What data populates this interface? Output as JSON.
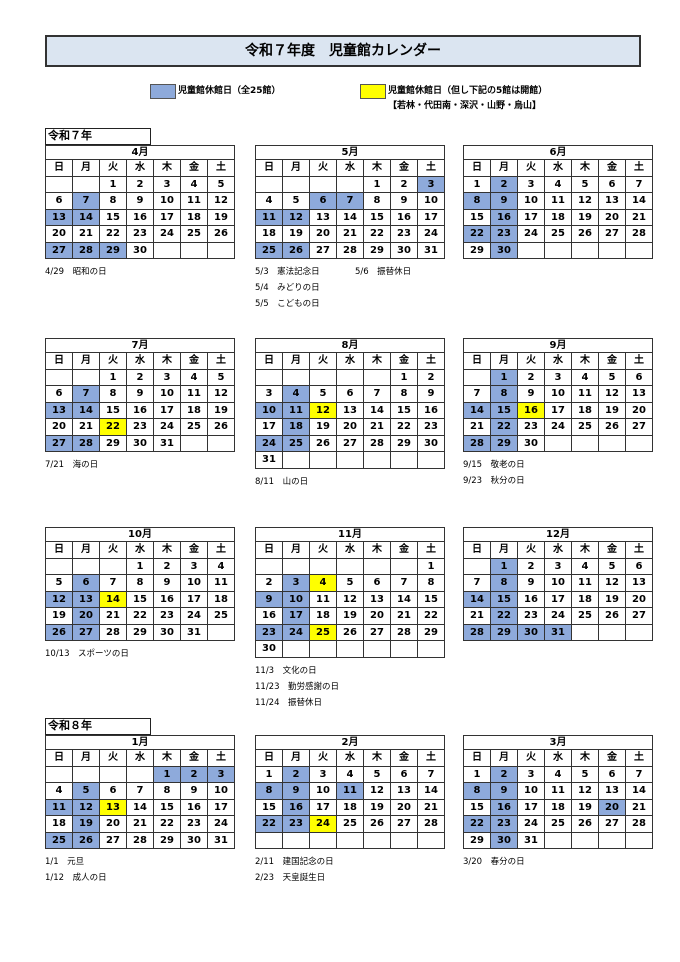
{
  "title": "令和７年度　児童館カレンダー",
  "legend": [
    {
      "label": "児童館休館日（全25館）",
      "color": "#8eaadb"
    },
    {
      "label": "児童館休館日（但し下記の5館は開館）",
      "color": "#ffff00"
    }
  ],
  "legend_note": "【若林・代田南・深沢・山野・烏山】",
  "weekdays": [
    "日",
    "月",
    "火",
    "水",
    "木",
    "金",
    "土"
  ],
  "years": [
    {
      "label": "令和７年",
      "months": [
        {
          "title": "4月",
          "rows": [
            [
              null,
              null,
              1,
              2,
              3,
              4,
              5
            ],
            [
              6,
              7,
              8,
              9,
              10,
              11,
              12
            ],
            [
              13,
              14,
              15,
              16,
              17,
              18,
              19
            ],
            [
              20,
              21,
              22,
              23,
              24,
              25,
              26
            ],
            [
              27,
              28,
              29,
              30,
              null,
              null,
              null
            ]
          ],
          "closed_all": [
            7,
            13,
            14,
            27,
            28,
            29
          ],
          "closed_partial": [],
          "holidays": [
            [
              "4/29　昭和の日"
            ]
          ]
        },
        {
          "title": "5月",
          "rows": [
            [
              null,
              null,
              null,
              null,
              1,
              2,
              3
            ],
            [
              4,
              5,
              6,
              7,
              8,
              9,
              10
            ],
            [
              11,
              12,
              13,
              14,
              15,
              16,
              17
            ],
            [
              18,
              19,
              20,
              21,
              22,
              23,
              24
            ],
            [
              25,
              26,
              27,
              28,
              29,
              30,
              31
            ]
          ],
          "closed_all": [
            3,
            6,
            7,
            11,
            12,
            25,
            26
          ],
          "closed_partial": [],
          "holidays": [
            [
              "5/3　憲法記念日",
              "5/6　振替休日"
            ],
            [
              "5/4　みどりの日"
            ],
            [
              "5/5　こどもの日"
            ]
          ]
        },
        {
          "title": "6月",
          "rows": [
            [
              1,
              2,
              3,
              4,
              5,
              6,
              7
            ],
            [
              8,
              9,
              10,
              11,
              12,
              13,
              14
            ],
            [
              15,
              16,
              17,
              18,
              19,
              20,
              21
            ],
            [
              22,
              23,
              24,
              25,
              26,
              27,
              28
            ],
            [
              29,
              30,
              null,
              null,
              null,
              null,
              null
            ]
          ],
          "closed_all": [
            2,
            8,
            9,
            16,
            22,
            23,
            30
          ],
          "closed_partial": [],
          "holidays": []
        },
        {
          "title": "7月",
          "rows": [
            [
              null,
              null,
              1,
              2,
              3,
              4,
              5
            ],
            [
              6,
              7,
              8,
              9,
              10,
              11,
              12
            ],
            [
              13,
              14,
              15,
              16,
              17,
              18,
              19
            ],
            [
              20,
              21,
              22,
              23,
              24,
              25,
              26
            ],
            [
              27,
              28,
              29,
              30,
              31,
              null,
              null
            ]
          ],
          "closed_all": [
            7,
            13,
            14,
            27,
            28
          ],
          "closed_partial": [
            22
          ],
          "holidays": [
            [
              "7/21　海の日"
            ]
          ]
        },
        {
          "title": "8月",
          "rows": [
            [
              null,
              null,
              null,
              null,
              null,
              1,
              2
            ],
            [
              3,
              4,
              5,
              6,
              7,
              8,
              9
            ],
            [
              10,
              11,
              12,
              13,
              14,
              15,
              16
            ],
            [
              17,
              18,
              19,
              20,
              21,
              22,
              23
            ],
            [
              24,
              25,
              26,
              27,
              28,
              29,
              30
            ],
            [
              31,
              null,
              null,
              null,
              null,
              null,
              null
            ]
          ],
          "closed_all": [
            4,
            10,
            11,
            18,
            24,
            25
          ],
          "closed_partial": [
            12
          ],
          "holidays": [
            [
              "8/11　山の日"
            ]
          ]
        },
        {
          "title": "9月",
          "rows": [
            [
              null,
              1,
              2,
              3,
              4,
              5,
              6
            ],
            [
              7,
              8,
              9,
              10,
              11,
              12,
              13
            ],
            [
              14,
              15,
              16,
              17,
              18,
              19,
              20
            ],
            [
              21,
              22,
              23,
              24,
              25,
              26,
              27
            ],
            [
              28,
              29,
              30,
              null,
              null,
              null,
              null
            ]
          ],
          "closed_all": [
            1,
            8,
            14,
            15,
            22,
            28,
            29
          ],
          "closed_partial": [
            16
          ],
          "holidays": [
            [
              "9/15　敬老の日"
            ],
            [
              "9/23　秋分の日"
            ]
          ]
        },
        {
          "title": "10月",
          "rows": [
            [
              null,
              null,
              null,
              1,
              2,
              3,
              4
            ],
            [
              5,
              6,
              7,
              8,
              9,
              10,
              11
            ],
            [
              12,
              13,
              14,
              15,
              16,
              17,
              18
            ],
            [
              19,
              20,
              21,
              22,
              23,
              24,
              25
            ],
            [
              26,
              27,
              28,
              29,
              30,
              31,
              null
            ]
          ],
          "closed_all": [
            6,
            12,
            13,
            20,
            26,
            27
          ],
          "closed_partial": [
            14
          ],
          "holidays": [
            [
              "10/13　スポーツの日"
            ]
          ]
        },
        {
          "title": "11月",
          "rows": [
            [
              null,
              null,
              null,
              null,
              null,
              null,
              1
            ],
            [
              2,
              3,
              4,
              5,
              6,
              7,
              8
            ],
            [
              9,
              10,
              11,
              12,
              13,
              14,
              15
            ],
            [
              16,
              17,
              18,
              19,
              20,
              21,
              22
            ],
            [
              23,
              24,
              25,
              26,
              27,
              28,
              29
            ],
            [
              30,
              null,
              null,
              null,
              null,
              null,
              null
            ]
          ],
          "closed_all": [
            3,
            9,
            10,
            17,
            23,
            24
          ],
          "closed_partial": [
            4,
            25
          ],
          "holidays": [
            [
              "11/3　文化の日"
            ],
            [
              "11/23　勤労感謝の日"
            ],
            [
              "11/24　振替休日"
            ]
          ]
        },
        {
          "title": "12月",
          "rows": [
            [
              null,
              1,
              2,
              3,
              4,
              5,
              6
            ],
            [
              7,
              8,
              9,
              10,
              11,
              12,
              13
            ],
            [
              14,
              15,
              16,
              17,
              18,
              19,
              20
            ],
            [
              21,
              22,
              23,
              24,
              25,
              26,
              27
            ],
            [
              28,
              29,
              30,
              31,
              null,
              null,
              null
            ]
          ],
          "closed_all": [
            1,
            8,
            14,
            15,
            22,
            28,
            29,
            30,
            31
          ],
          "closed_partial": [],
          "holidays": []
        }
      ]
    },
    {
      "label": "令和８年",
      "months": [
        {
          "title": "1月",
          "rows": [
            [
              null,
              null,
              null,
              null,
              1,
              2,
              3
            ],
            [
              4,
              5,
              6,
              7,
              8,
              9,
              10
            ],
            [
              11,
              12,
              13,
              14,
              15,
              16,
              17
            ],
            [
              18,
              19,
              20,
              21,
              22,
              23,
              24
            ],
            [
              25,
              26,
              27,
              28,
              29,
              30,
              31
            ]
          ],
          "closed_all": [
            1,
            2,
            3,
            5,
            11,
            12,
            19,
            25,
            26
          ],
          "closed_partial": [
            13
          ],
          "holidays": [
            [
              "1/1　元旦"
            ],
            [
              "1/12　成人の日"
            ]
          ]
        },
        {
          "title": "2月",
          "rows": [
            [
              1,
              2,
              3,
              4,
              5,
              6,
              7
            ],
            [
              8,
              9,
              10,
              11,
              12,
              13,
              14
            ],
            [
              15,
              16,
              17,
              18,
              19,
              20,
              21
            ],
            [
              22,
              23,
              24,
              25,
              26,
              27,
              28
            ],
            [
              null,
              null,
              null,
              null,
              null,
              null,
              null
            ]
          ],
          "closed_all": [
            2,
            8,
            9,
            11,
            16,
            22,
            23
          ],
          "closed_partial": [
            24
          ],
          "holidays": [
            [
              "2/11　建国記念の日"
            ],
            [
              "2/23　天皇誕生日"
            ]
          ]
        },
        {
          "title": "3月",
          "rows": [
            [
              1,
              2,
              3,
              4,
              5,
              6,
              7
            ],
            [
              8,
              9,
              10,
              11,
              12,
              13,
              14
            ],
            [
              15,
              16,
              17,
              18,
              19,
              20,
              21
            ],
            [
              22,
              23,
              24,
              25,
              26,
              27,
              28
            ],
            [
              29,
              30,
              31,
              null,
              null,
              null,
              null
            ]
          ],
          "closed_all": [
            2,
            8,
            9,
            16,
            20,
            22,
            23,
            30
          ],
          "closed_partial": [],
          "holidays": [
            [
              "3/20　春分の日"
            ]
          ]
        }
      ]
    }
  ]
}
